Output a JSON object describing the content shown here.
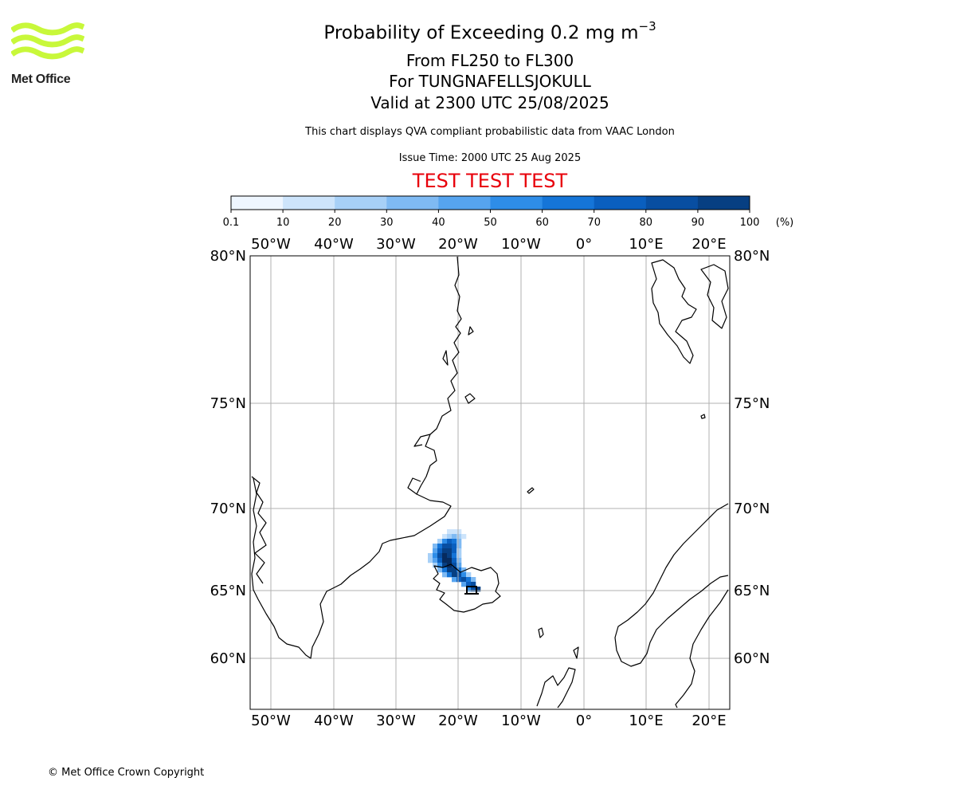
{
  "header": {
    "title_main": "Probability of Exceeding 0.2 mg m",
    "title_exponent": "−3",
    "level_range": "From FL250 to FL300",
    "volcano": "For TUNGNAFELLSJOKULL",
    "valid_time": "Valid at 2300 UTC 25/08/2025",
    "subtitle": "This chart displays QVA compliant probabilistic data from VAAC London",
    "issue_time": "Issue Time: 2000 UTC 25 Aug 2025",
    "test_banner": "TEST TEST TEST"
  },
  "logo": {
    "text": "Met Office",
    "color": "#c8f83a"
  },
  "colorbar": {
    "ticks": [
      "0.1",
      "10",
      "20",
      "30",
      "40",
      "50",
      "60",
      "70",
      "80",
      "90",
      "100"
    ],
    "unit": "(%)",
    "colors": [
      "#eef6ff",
      "#cde4fb",
      "#a7d0f7",
      "#7fbaf3",
      "#56a4ef",
      "#2e8de8",
      "#1575d8",
      "#0a5fbf",
      "#084ea1",
      "#073f82",
      "#062b5e"
    ]
  },
  "map": {
    "lon_labels": [
      "50°W",
      "40°W",
      "30°W",
      "20°W",
      "10°W",
      "0°",
      "10°E",
      "20°E"
    ],
    "lat_labels": [
      "80°N",
      "75°N",
      "70°N",
      "65°N",
      "60°N"
    ],
    "gridlines": true
  },
  "footer": {
    "copyright": "© Met Office Crown Copyright"
  }
}
